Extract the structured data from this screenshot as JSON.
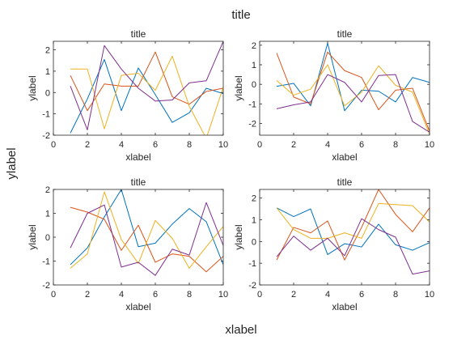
{
  "figure": {
    "title": "title",
    "xlabel": "xlabel",
    "ylabel": "ylabel"
  },
  "chart_data": [
    {
      "type": "line",
      "title": "title",
      "xlabel": "xlabel",
      "ylabel": "ylabel",
      "xlim": [
        0,
        10
      ],
      "ylim": [
        -2,
        2.4
      ],
      "xticks": [
        0,
        2,
        4,
        6,
        8,
        10
      ],
      "yticks": [
        -2,
        -1,
        0,
        1,
        2
      ],
      "x": [
        1,
        2,
        3,
        4,
        5,
        6,
        7,
        8,
        9,
        10
      ],
      "series": [
        {
          "color": "#0072BD",
          "values": [
            -1.9,
            -0.3,
            1.55,
            -0.85,
            1.15,
            -0.1,
            -1.4,
            -0.95,
            0.2,
            -0.05
          ]
        },
        {
          "color": "#D95319",
          "values": [
            0.8,
            -0.85,
            0.4,
            0.3,
            0.3,
            1.9,
            -0.2,
            -0.55,
            0.05,
            0.2
          ]
        },
        {
          "color": "#EDB120",
          "values": [
            1.1,
            1.1,
            -1.7,
            0.8,
            0.9,
            0.1,
            1.7,
            -0.65,
            -2.15,
            0.25
          ]
        },
        {
          "color": "#7E2F8E",
          "values": [
            0.3,
            -1.75,
            2.2,
            1.1,
            0.2,
            -0.4,
            -0.35,
            0.45,
            0.55,
            2.4
          ]
        }
      ]
    },
    {
      "type": "line",
      "title": "title",
      "xlabel": "xlabel",
      "ylabel": "ylabel",
      "xlim": [
        0,
        10
      ],
      "ylim": [
        -2.6,
        2.2
      ],
      "xticks": [
        0,
        2,
        4,
        6,
        8,
        10
      ],
      "yticks": [
        -2,
        -1,
        0,
        1,
        2
      ],
      "x": [
        1,
        2,
        3,
        4,
        5,
        6,
        7,
        8,
        9,
        10
      ],
      "series": [
        {
          "color": "#0072BD",
          "values": [
            -0.1,
            0.05,
            -1.1,
            2.1,
            -1.35,
            -0.3,
            -0.35,
            -0.9,
            0.35,
            0.1
          ]
        },
        {
          "color": "#D95319",
          "values": [
            1.6,
            -0.65,
            -1.0,
            1.65,
            0.7,
            0.35,
            -1.3,
            -0.3,
            -0.2,
            -2.4
          ]
        },
        {
          "color": "#EDB120",
          "values": [
            0.2,
            -0.55,
            -0.25,
            1.0,
            -1.1,
            -0.4,
            0.95,
            -0.05,
            -0.4,
            -2.55
          ]
        },
        {
          "color": "#7E2F8E",
          "values": [
            -1.25,
            -1.05,
            -0.9,
            0.5,
            0.1,
            -0.9,
            0.45,
            0.5,
            -1.9,
            -2.45
          ]
        }
      ]
    },
    {
      "type": "line",
      "title": "title",
      "xlabel": "xlabel",
      "ylabel": "ylabel",
      "xlim": [
        0,
        10
      ],
      "ylim": [
        -2,
        2
      ],
      "xticks": [
        0,
        2,
        4,
        6,
        8,
        10
      ],
      "yticks": [
        -2,
        -1,
        0,
        1,
        2
      ],
      "x": [
        1,
        2,
        3,
        4,
        5,
        6,
        7,
        8,
        9,
        10
      ],
      "series": [
        {
          "color": "#0072BD",
          "values": [
            -1.15,
            -0.45,
            0.85,
            2.0,
            -0.4,
            -0.25,
            0.55,
            1.2,
            0.65,
            -1.15
          ]
        },
        {
          "color": "#D95319",
          "values": [
            1.25,
            1.05,
            0.75,
            -0.55,
            0.5,
            -1.05,
            -0.7,
            -0.8,
            -1.45,
            -0.8
          ]
        },
        {
          "color": "#EDB120",
          "values": [
            -1.3,
            -0.7,
            1.9,
            -0.1,
            -1.1,
            0.7,
            -0.05,
            -1.3,
            -0.4,
            0.45
          ]
        },
        {
          "color": "#7E2F8E",
          "values": [
            -0.45,
            1.0,
            1.35,
            -1.25,
            -1.05,
            -1.6,
            -0.5,
            -0.75,
            1.45,
            -0.35
          ]
        }
      ]
    },
    {
      "type": "line",
      "title": "title",
      "xlabel": "xlabel",
      "ylabel": "ylabel",
      "xlim": [
        0,
        10
      ],
      "ylim": [
        -2,
        2.4
      ],
      "xticks": [
        0,
        2,
        4,
        6,
        8,
        10
      ],
      "yticks": [
        -2,
        -1,
        0,
        1,
        2
      ],
      "x": [
        1,
        2,
        3,
        4,
        5,
        6,
        7,
        8,
        9,
        10
      ],
      "series": [
        {
          "color": "#0072BD",
          "values": [
            1.55,
            1.15,
            1.5,
            -0.6,
            -0.1,
            -0.25,
            0.8,
            -0.15,
            -0.4,
            -0.05
          ]
        },
        {
          "color": "#D95319",
          "values": [
            -0.85,
            0.65,
            0.4,
            0.95,
            -0.85,
            0.65,
            2.4,
            1.25,
            0.45,
            1.55
          ]
        },
        {
          "color": "#EDB120",
          "values": [
            1.55,
            0.55,
            0.15,
            0.15,
            0.4,
            0.15,
            1.75,
            1.7,
            1.65,
            0.9
          ]
        },
        {
          "color": "#7E2F8E",
          "values": [
            -0.7,
            0.25,
            -0.4,
            0.15,
            -0.65,
            1.05,
            0.55,
            0.2,
            -1.5,
            -1.35
          ]
        }
      ]
    }
  ]
}
